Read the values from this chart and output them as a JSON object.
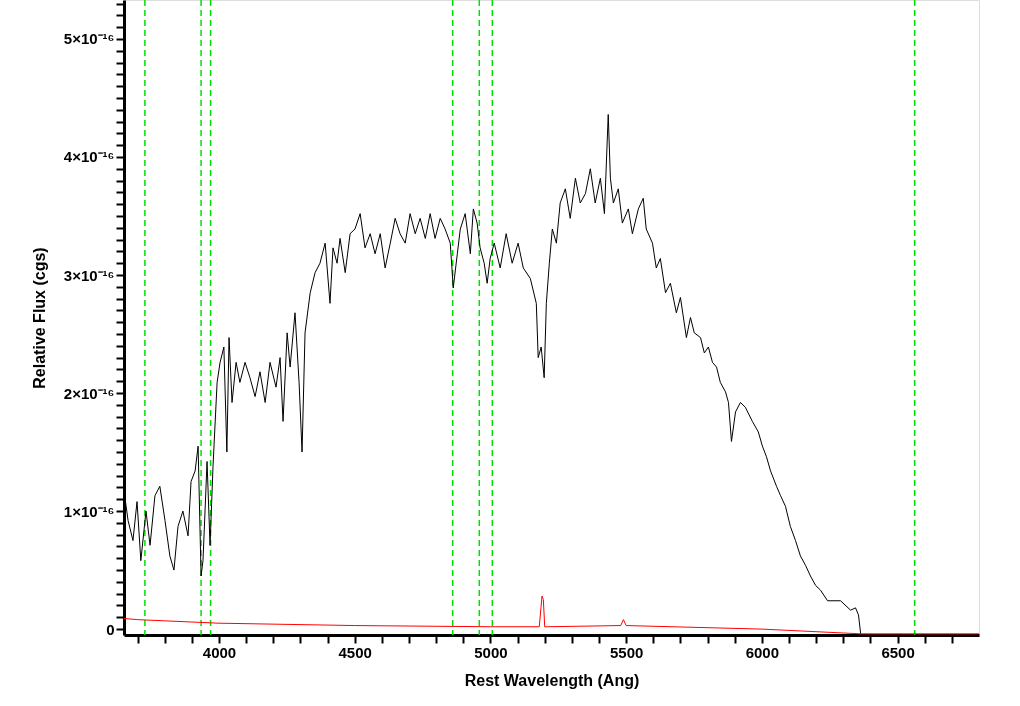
{
  "chart_data": {
    "type": "line",
    "xlabel": "Rest Wavelength (Ang)",
    "ylabel": "Relative Flux (cgs)",
    "xlim": [
      3650,
      6800
    ],
    "ylim": [
      -5e-18,
      5.33e-16
    ],
    "xticks": [
      {
        "value": 3700,
        "label": null
      },
      {
        "value": 3800,
        "label": null
      },
      {
        "value": 3900,
        "label": null
      },
      4000,
      {
        "value": 4100,
        "label": null
      },
      {
        "value": 4200,
        "label": null
      },
      {
        "value": 4300,
        "label": null
      },
      {
        "value": 4400,
        "label": null
      },
      4500,
      {
        "value": 4600,
        "label": null
      },
      {
        "value": 4700,
        "label": null
      },
      {
        "value": 4800,
        "label": null
      },
      {
        "value": 4900,
        "label": null
      },
      5000,
      {
        "value": 5100,
        "label": null
      },
      {
        "value": 5200,
        "label": null
      },
      {
        "value": 5300,
        "label": null
      },
      {
        "value": 5400,
        "label": null
      },
      5500,
      {
        "value": 5600,
        "label": null
      },
      {
        "value": 5700,
        "label": null
      },
      {
        "value": 5800,
        "label": null
      },
      {
        "value": 5900,
        "label": null
      },
      6000,
      {
        "value": 6100,
        "label": null
      },
      {
        "value": 6200,
        "label": null
      },
      {
        "value": 6300,
        "label": null
      },
      {
        "value": 6400,
        "label": null
      },
      6500,
      {
        "value": 6600,
        "label": null
      },
      {
        "value": 6700,
        "label": null
      }
    ],
    "yticks": [
      0,
      {
        "value": 1e-17,
        "label": null
      },
      {
        "value": 2e-17,
        "label": null
      },
      {
        "value": 3e-17,
        "label": null
      },
      {
        "value": 4e-17,
        "label": null
      },
      {
        "value": 5e-17,
        "label": null
      },
      {
        "value": 6e-17,
        "label": null
      },
      {
        "value": 7e-17,
        "label": null
      },
      {
        "value": 8e-17,
        "label": null
      },
      {
        "value": 9e-17,
        "label": null
      },
      {
        "value": 1e-16,
        "label": "1×10⁻¹⁶"
      },
      {
        "value": 1.1e-16,
        "label": null
      },
      {
        "value": 1.2e-16,
        "label": null
      },
      {
        "value": 1.3e-16,
        "label": null
      },
      {
        "value": 1.4e-16,
        "label": null
      },
      {
        "value": 1.5e-16,
        "label": null
      },
      {
        "value": 1.6e-16,
        "label": null
      },
      {
        "value": 1.7e-16,
        "label": null
      },
      {
        "value": 1.8e-16,
        "label": null
      },
      {
        "value": 1.9e-16,
        "label": null
      },
      {
        "value": 2e-16,
        "label": "2×10⁻¹⁶"
      },
      {
        "value": 2.1e-16,
        "label": null
      },
      {
        "value": 2.2e-16,
        "label": null
      },
      {
        "value": 2.3e-16,
        "label": null
      },
      {
        "value": 2.4e-16,
        "label": null
      },
      {
        "value": 2.5e-16,
        "label": null
      },
      {
        "value": 2.6e-16,
        "label": null
      },
      {
        "value": 2.7e-16,
        "label": null
      },
      {
        "value": 2.8e-16,
        "label": null
      },
      {
        "value": 2.9e-16,
        "label": null
      },
      {
        "value": 3e-16,
        "label": "3×10⁻¹⁶"
      },
      {
        "value": 3.1e-16,
        "label": null
      },
      {
        "value": 3.2e-16,
        "label": null
      },
      {
        "value": 3.3e-16,
        "label": null
      },
      {
        "value": 3.4e-16,
        "label": null
      },
      {
        "value": 3.5e-16,
        "label": null
      },
      {
        "value": 3.6e-16,
        "label": null
      },
      {
        "value": 3.7e-16,
        "label": null
      },
      {
        "value": 3.8e-16,
        "label": null
      },
      {
        "value": 3.9e-16,
        "label": null
      },
      {
        "value": 4e-16,
        "label": "4×10⁻¹⁶"
      },
      {
        "value": 4.1e-16,
        "label": null
      },
      {
        "value": 4.2e-16,
        "label": null
      },
      {
        "value": 4.3e-16,
        "label": null
      },
      {
        "value": 4.4e-16,
        "label": null
      },
      {
        "value": 4.5e-16,
        "label": null
      },
      {
        "value": 4.6e-16,
        "label": null
      },
      {
        "value": 4.7e-16,
        "label": null
      },
      {
        "value": 4.8e-16,
        "label": null
      },
      {
        "value": 4.9e-16,
        "label": null
      },
      {
        "value": 5e-16,
        "label": "5×10⁻¹⁶"
      },
      {
        "value": 5.1e-16,
        "label": null
      },
      {
        "value": 5.2e-16,
        "label": null
      },
      {
        "value": 5.3e-16,
        "label": null
      }
    ],
    "grid": false,
    "marker": "none",
    "line_style": "solid",
    "series": [
      {
        "color": "#000000",
        "x": [
          3650,
          3665,
          3683,
          3698,
          3712,
          3731,
          3746,
          3764,
          3782,
          3801,
          3819,
          3834,
          3849,
          3867,
          3886,
          3897,
          3912,
          3923,
          3934,
          3941,
          3956,
          3967,
          3978,
          3993,
          4004,
          4018,
          4029,
          4037,
          4048,
          4063,
          4077,
          4096,
          4114,
          4133,
          4151,
          4170,
          4188,
          4210,
          4225,
          4236,
          4251,
          4262,
          4280,
          4295,
          4306,
          4317,
          4336,
          4354,
          4372,
          4391,
          4409,
          4420,
          4435,
          4446,
          4465,
          4483,
          4501,
          4520,
          4538,
          4557,
          4575,
          4594,
          4612,
          4631,
          4649,
          4667,
          4686,
          4704,
          4723,
          4741,
          4760,
          4778,
          4796,
          4815,
          4833,
          4852,
          4863,
          4878,
          4889,
          4907,
          4926,
          4937,
          4951,
          4962,
          4977,
          4988,
          4999,
          5014,
          5036,
          5058,
          5080,
          5102,
          5121,
          5147,
          5169,
          5176,
          5187,
          5198,
          5206,
          5217,
          5228,
          5243,
          5257,
          5276,
          5294,
          5313,
          5331,
          5350,
          5368,
          5386,
          5405,
          5420,
          5427,
          5434,
          5442,
          5453,
          5471,
          5486,
          5508,
          5523,
          5545,
          5563,
          5574,
          5597,
          5611,
          5626,
          5645,
          5663,
          5685,
          5700,
          5722,
          5737,
          5751,
          5774,
          5788,
          5803,
          5818,
          5833,
          5847,
          5866,
          5877,
          5888,
          5903,
          5921,
          5939,
          5965,
          5987,
          6002,
          6017,
          6032,
          6054,
          6069,
          6087,
          6105,
          6124,
          6142,
          6161,
          6179,
          6198,
          6216,
          6242,
          6290,
          6327,
          6345,
          6356,
          6364
        ],
        "values": [
          1.17e-16,
          9.2e-17,
          7.5e-17,
          1.08e-16,
          5.8e-17,
          1e-16,
          7.1e-17,
          1.13e-16,
          1.21e-16,
          9.2e-17,
          6.2e-17,
          5e-17,
          8.7e-17,
          1e-16,
          7.9e-17,
          1.25e-16,
          1.34e-16,
          1.55e-16,
          4.5e-17,
          5.8e-17,
          1.42e-16,
          7.1e-17,
          1.38e-16,
          2.09e-16,
          2.26e-16,
          2.39e-16,
          1.5e-16,
          2.47e-16,
          1.92e-16,
          2.26e-16,
          2.09e-16,
          2.26e-16,
          2.13e-16,
          1.97e-16,
          2.18e-16,
          1.92e-16,
          2.26e-16,
          2.05e-16,
          2.3e-16,
          1.76e-16,
          2.51e-16,
          2.22e-16,
          2.68e-16,
          2.09e-16,
          1.5e-16,
          2.51e-16,
          2.85e-16,
          3.02e-16,
          3.1e-16,
          3.27e-16,
          2.76e-16,
          3.23e-16,
          3.1e-16,
          3.31e-16,
          3.02e-16,
          3.35e-16,
          3.39e-16,
          3.52e-16,
          3.23e-16,
          3.35e-16,
          3.18e-16,
          3.35e-16,
          3.06e-16,
          3.27e-16,
          3.48e-16,
          3.35e-16,
          3.27e-16,
          3.52e-16,
          3.35e-16,
          3.48e-16,
          3.31e-16,
          3.52e-16,
          3.31e-16,
          3.48e-16,
          3.39e-16,
          3.27e-16,
          2.89e-16,
          3.18e-16,
          3.39e-16,
          3.52e-16,
          3.18e-16,
          3.56e-16,
          3.44e-16,
          3.23e-16,
          3.1e-16,
          2.93e-16,
          3.14e-16,
          3.27e-16,
          3.06e-16,
          3.35e-16,
          3.1e-16,
          3.27e-16,
          3.06e-16,
          2.97e-16,
          2.76e-16,
          2.3e-16,
          2.39e-16,
          2.13e-16,
          2.76e-16,
          3.1e-16,
          3.39e-16,
          3.27e-16,
          3.61e-16,
          3.73e-16,
          3.48e-16,
          3.82e-16,
          3.61e-16,
          3.69e-16,
          3.9e-16,
          3.61e-16,
          3.82e-16,
          3.52e-16,
          3.94e-16,
          4.36e-16,
          3.82e-16,
          3.61e-16,
          3.73e-16,
          3.44e-16,
          3.56e-16,
          3.35e-16,
          3.56e-16,
          3.65e-16,
          3.39e-16,
          3.27e-16,
          3.06e-16,
          3.14e-16,
          2.85e-16,
          2.93e-16,
          2.68e-16,
          2.81e-16,
          2.47e-16,
          2.64e-16,
          2.51e-16,
          2.47e-16,
          2.34e-16,
          2.39e-16,
          2.26e-16,
          2.22e-16,
          2.09e-16,
          2.01e-16,
          1.92e-16,
          1.59e-16,
          1.84e-16,
          1.92e-16,
          1.88e-16,
          1.76e-16,
          1.67e-16,
          1.55e-16,
          1.46e-16,
          1.34e-16,
          1.21e-16,
          1.13e-16,
          1.04e-16,
          8.7e-17,
          7.5e-17,
          6.2e-17,
          5.4e-17,
          4.5e-17,
          3.7e-17,
          3.3e-17,
          2.4e-17,
          2.4e-17,
          1.6e-17,
          1.8e-17,
          1.2e-17,
          -4e-18
        ]
      },
      {
        "color": "#ff0000",
        "x": [
          3650,
          3700,
          3800,
          3900,
          4000,
          4500,
          5000,
          5180,
          5190,
          5195,
          5200,
          5210,
          5480,
          5490,
          5500,
          6000,
          6364,
          6800
        ],
        "values": [
          9e-18,
          8e-18,
          7e-18,
          6e-18,
          5e-18,
          3e-18,
          2e-18,
          2e-18,
          2.8e-17,
          2.5e-17,
          2e-18,
          2e-18,
          3e-18,
          8e-18,
          3e-18,
          0,
          -4e-18,
          -4e-18
        ]
      }
    ],
    "ref_lines": [
      {
        "axis": "x",
        "value": 3727,
        "color": "#00e000",
        "line_style": "dashed"
      },
      {
        "axis": "x",
        "value": 3934,
        "color": "#00e000",
        "line_style": "dashed"
      },
      {
        "axis": "x",
        "value": 3969,
        "color": "#00e000",
        "line_style": "dashed"
      },
      {
        "axis": "x",
        "value": 4861,
        "color": "#00e000",
        "line_style": "dashed"
      },
      {
        "axis": "x",
        "value": 4959,
        "color": "#00e000",
        "line_style": "dashed"
      },
      {
        "axis": "x",
        "value": 5007,
        "color": "#00e000",
        "line_style": "dashed"
      },
      {
        "axis": "x",
        "value": 6563,
        "color": "#00e000",
        "line_style": "dashed"
      }
    ]
  }
}
